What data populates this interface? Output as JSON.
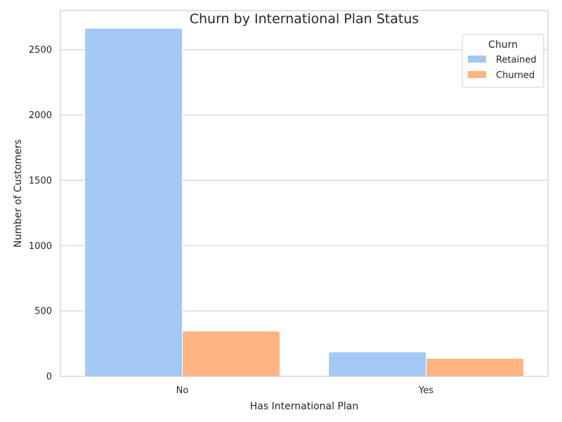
{
  "chart_data": {
    "type": "bar",
    "title": "Churn by International Plan Status",
    "xlabel": "Has International Plan",
    "ylabel": "Number of Customers",
    "categories": [
      "No",
      "Yes"
    ],
    "series": [
      {
        "name": "Retained",
        "values": [
          2664,
          186
        ],
        "color": "#a1c9f4"
      },
      {
        "name": "Churned",
        "values": [
          346,
          137
        ],
        "color": "#ffb482"
      }
    ],
    "ylim": [
      0,
      2800
    ],
    "yticks": [
      0,
      500,
      1000,
      1500,
      2000,
      2500
    ],
    "grid": true,
    "legend": {
      "title": "Churn",
      "placement": "top-right"
    }
  }
}
